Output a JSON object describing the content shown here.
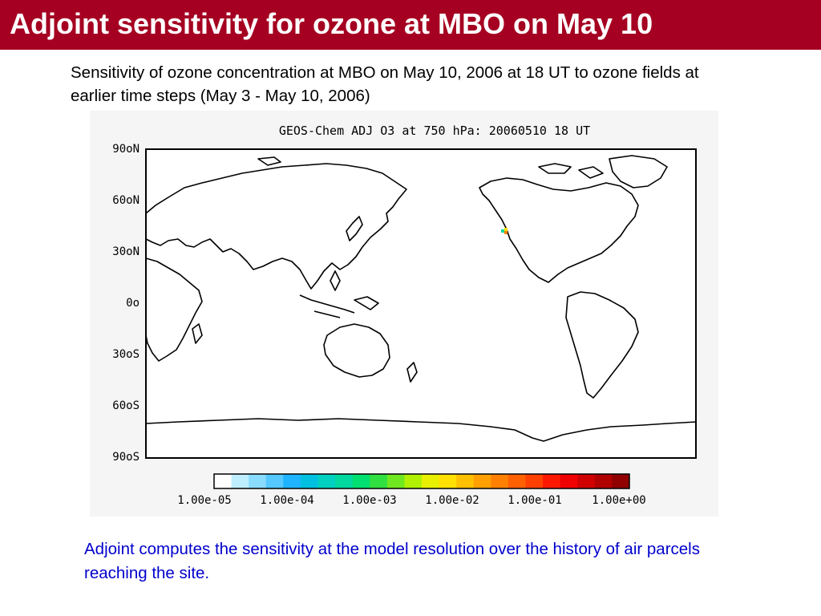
{
  "slide": {
    "title": "Adjoint sensitivity for ozone at MBO on May 10",
    "subtitle": "Sensitivity of ozone concentration at MBO on May 10, 2006 at 18 UT to ozone fields at earlier time steps (May 3 - May 10, 2006)",
    "caption": "Adjoint computes the sensitivity at the model resolution over the history of air parcels reaching the site.",
    "colors": {
      "title_bar": "#a50021",
      "caption_text": "#0000cc"
    }
  },
  "figure": {
    "plot_title": "GEOS-Chem ADJ O3 at 750 hPa: 20060510 18 UT",
    "lat_labels": [
      "90oN",
      "60oN",
      "30oN",
      "0o",
      "30oS",
      "60oS",
      "90oS"
    ],
    "colorbar": {
      "labels": [
        "1.00e-05",
        "1.00e-04",
        "1.00e-03",
        "1.00e-02",
        "1.00e-01",
        "1.00e+00"
      ],
      "colors": [
        "#ffffff",
        "#bfeeff",
        "#8adcff",
        "#55c8ff",
        "#1eb4ff",
        "#00c0e0",
        "#00d0c0",
        "#00d8a0",
        "#00e070",
        "#30e040",
        "#70e820",
        "#b0f000",
        "#e8f000",
        "#ffe000",
        "#ffc000",
        "#ffa000",
        "#ff8000",
        "#ff6000",
        "#ff4000",
        "#ff1800",
        "#f00000",
        "#d00000",
        "#b00000",
        "#900000"
      ]
    },
    "site_marker_colors": [
      "#ffe000",
      "#ff8000",
      "#00d8a0"
    ]
  }
}
